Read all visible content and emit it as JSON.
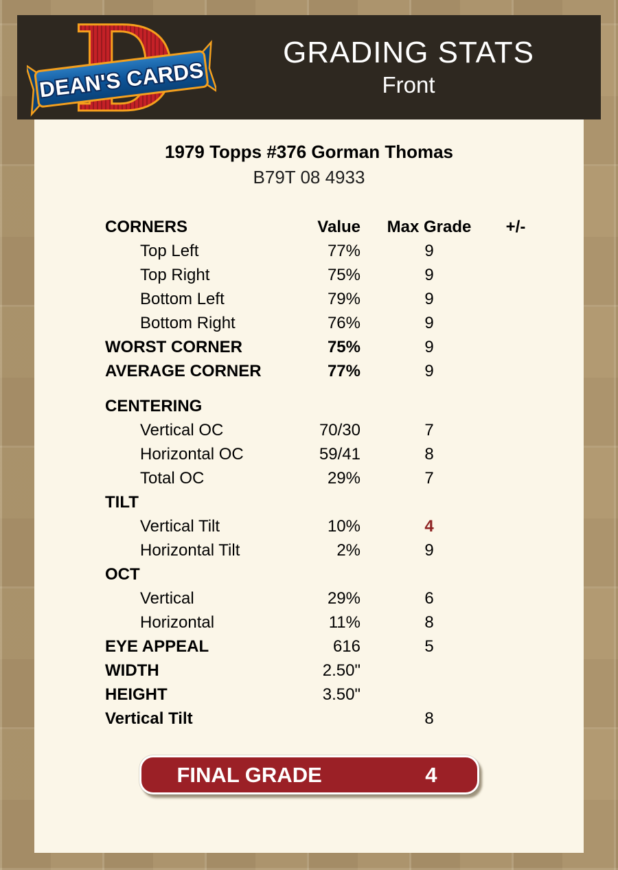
{
  "header": {
    "logo": {
      "d": "D",
      "banner": "DEAN'S CARDS"
    },
    "title": "GRADING STATS",
    "subtitle": "Front"
  },
  "card": {
    "title": "1979 Topps #376 Gorman Thomas",
    "serial": "B79T 08 4933"
  },
  "table": {
    "header": {
      "label": "CORNERS",
      "value": "Value",
      "max_grade": "Max Grade",
      "plus_minus": "+/-"
    },
    "rows": [
      {
        "label": "Top Left",
        "value": "77%",
        "max": "9",
        "pm": "",
        "indent": true
      },
      {
        "label": "Top Right",
        "value": "75%",
        "max": "9",
        "pm": "",
        "indent": true
      },
      {
        "label": "Bottom Left",
        "value": "79%",
        "max": "9",
        "pm": "",
        "indent": true
      },
      {
        "label": "Bottom Right",
        "value": "76%",
        "max": "9",
        "pm": "",
        "indent": true
      },
      {
        "label": "WORST CORNER",
        "value": "75%",
        "max": "9",
        "pm": "",
        "bold": true,
        "bold_value": true
      },
      {
        "label": "AVERAGE CORNER",
        "value": "77%",
        "max": "9",
        "pm": "",
        "bold": true,
        "bold_value": true
      },
      {
        "label": "CENTERING",
        "value": "",
        "max": "",
        "pm": "",
        "bold": true,
        "gap_before": true
      },
      {
        "label": "Vertical OC",
        "value": "70/30",
        "max": "7",
        "pm": "",
        "indent": true
      },
      {
        "label": "Horizontal OC",
        "value": "59/41",
        "max": "8",
        "pm": "",
        "indent": true
      },
      {
        "label": "Total OC",
        "value": "29%",
        "max": "7",
        "pm": "",
        "indent": true
      },
      {
        "label": "TILT",
        "value": "",
        "max": "",
        "pm": "",
        "bold": true
      },
      {
        "label": "Vertical Tilt",
        "value": "10%",
        "max": "4",
        "pm": "",
        "indent": true,
        "highlight_max": true
      },
      {
        "label": "Horizontal Tilt",
        "value": "2%",
        "max": "9",
        "pm": "",
        "indent": true
      },
      {
        "label": "OCT",
        "value": "",
        "max": "",
        "pm": "",
        "bold": true
      },
      {
        "label": "Vertical",
        "value": "29%",
        "max": "6",
        "pm": "",
        "indent": true
      },
      {
        "label": "Horizontal",
        "value": "11%",
        "max": "8",
        "pm": "",
        "indent": true
      },
      {
        "label": "EYE APPEAL",
        "value": "616",
        "max": "5",
        "pm": "",
        "bold": true
      },
      {
        "label": "WIDTH",
        "value": "2.50\"",
        "max": "",
        "pm": "",
        "bold": true
      },
      {
        "label": "HEIGHT",
        "value": "3.50\"",
        "max": "",
        "pm": "",
        "bold": true
      },
      {
        "label": "Vertical Tilt",
        "value": "",
        "max": "8",
        "pm": "",
        "bold": true
      }
    ]
  },
  "final_grade": {
    "label": "FINAL GRADE",
    "value": "4"
  },
  "colors": {
    "page_bg": "#b29a72",
    "header_bg": "#2e2820",
    "panel_bg": "#fbf6e8",
    "button_red": "#9b2026",
    "highlight_maroon": "#8e2323",
    "logo_red": "#c42127",
    "logo_orange": "#f5a01d",
    "logo_blue": "#0d5499"
  }
}
